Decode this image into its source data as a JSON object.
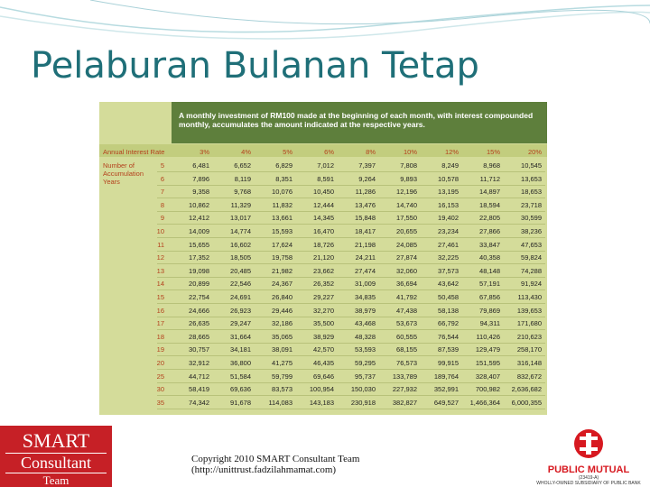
{
  "title": "Pelaburan Bulanan Tetap",
  "table": {
    "caption": "A monthly investment of RM100 made at the beginning of each month, with interest compounded monthly, accumulates the amount indicated at the respective years.",
    "rate_header": "Annual Interest Rate",
    "rates": [
      "3%",
      "4%",
      "5%",
      "6%",
      "8%",
      "10%",
      "12%",
      "15%",
      "20%"
    ],
    "years_label": "Number of Accumulation Years",
    "rows": [
      {
        "year": "5",
        "values": [
          "6,481",
          "6,652",
          "6,829",
          "7,012",
          "7,397",
          "7,808",
          "8,249",
          "8,968",
          "10,545"
        ]
      },
      {
        "year": "6",
        "values": [
          "7,896",
          "8,119",
          "8,351",
          "8,591",
          "9,264",
          "9,893",
          "10,578",
          "11,712",
          "13,653"
        ]
      },
      {
        "year": "7",
        "values": [
          "9,358",
          "9,768",
          "10,076",
          "10,450",
          "11,286",
          "12,196",
          "13,195",
          "14,897",
          "18,653"
        ]
      },
      {
        "year": "8",
        "values": [
          "10,862",
          "11,329",
          "11,832",
          "12,444",
          "13,476",
          "14,740",
          "16,153",
          "18,594",
          "23,718"
        ]
      },
      {
        "year": "9",
        "values": [
          "12,412",
          "13,017",
          "13,661",
          "14,345",
          "15,848",
          "17,550",
          "19,402",
          "22,805",
          "30,599"
        ]
      },
      {
        "year": "10",
        "values": [
          "14,009",
          "14,774",
          "15,593",
          "16,470",
          "18,417",
          "20,655",
          "23,234",
          "27,866",
          "38,236"
        ]
      },
      {
        "year": "11",
        "values": [
          "15,655",
          "16,602",
          "17,624",
          "18,726",
          "21,198",
          "24,085",
          "27,461",
          "33,847",
          "47,653"
        ]
      },
      {
        "year": "12",
        "values": [
          "17,352",
          "18,505",
          "19,758",
          "21,120",
          "24,211",
          "27,874",
          "32,225",
          "40,358",
          "59,824"
        ]
      },
      {
        "year": "13",
        "values": [
          "19,098",
          "20,485",
          "21,982",
          "23,662",
          "27,474",
          "32,060",
          "37,573",
          "48,148",
          "74,288"
        ]
      },
      {
        "year": "14",
        "values": [
          "20,899",
          "22,546",
          "24,367",
          "26,352",
          "31,009",
          "36,694",
          "43,642",
          "57,191",
          "91,924"
        ]
      },
      {
        "year": "15",
        "values": [
          "22,754",
          "24,691",
          "26,840",
          "29,227",
          "34,835",
          "41,792",
          "50,458",
          "67,856",
          "113,430"
        ]
      },
      {
        "year": "16",
        "values": [
          "24,666",
          "26,923",
          "29,446",
          "32,270",
          "38,979",
          "47,438",
          "58,138",
          "79,869",
          "139,653"
        ]
      },
      {
        "year": "17",
        "values": [
          "26,635",
          "29,247",
          "32,186",
          "35,500",
          "43,468",
          "53,673",
          "66,792",
          "94,311",
          "171,680"
        ]
      },
      {
        "year": "18",
        "values": [
          "28,665",
          "31,664",
          "35,065",
          "38,929",
          "48,328",
          "60,555",
          "76,544",
          "110,426",
          "210,623"
        ]
      },
      {
        "year": "19",
        "values": [
          "30,757",
          "34,181",
          "38,091",
          "42,570",
          "53,593",
          "68,155",
          "87,539",
          "129,479",
          "258,170"
        ]
      },
      {
        "year": "20",
        "values": [
          "32,912",
          "36,800",
          "41,275",
          "46,435",
          "59,295",
          "76,573",
          "99,915",
          "151,595",
          "316,148"
        ]
      },
      {
        "year": "25",
        "values": [
          "44,712",
          "51,584",
          "59,799",
          "69,646",
          "95,737",
          "133,789",
          "189,764",
          "328,407",
          "832,672"
        ]
      },
      {
        "year": "30",
        "values": [
          "58,419",
          "69,636",
          "83,573",
          "100,954",
          "150,030",
          "227,932",
          "352,991",
          "700,982",
          "2,636,682"
        ]
      },
      {
        "year": "35",
        "values": [
          "74,342",
          "91,678",
          "114,083",
          "143,183",
          "230,918",
          "382,827",
          "649,527",
          "1,466,364",
          "6,000,355"
        ]
      }
    ]
  },
  "footer": {
    "logo_left": [
      "SMART",
      "Consultant",
      "Team"
    ],
    "copyright": "Copyright 2010 SMART Consultant Team",
    "url": "(http://unittrust.fadzilahmamat.com)",
    "logo_right": {
      "name": "PUBLIC MUTUAL",
      "reg": "(23419-A)",
      "tagline": "WHOLLY-OWNED SUBSIDIARY OF PUBLIC BANK"
    }
  }
}
